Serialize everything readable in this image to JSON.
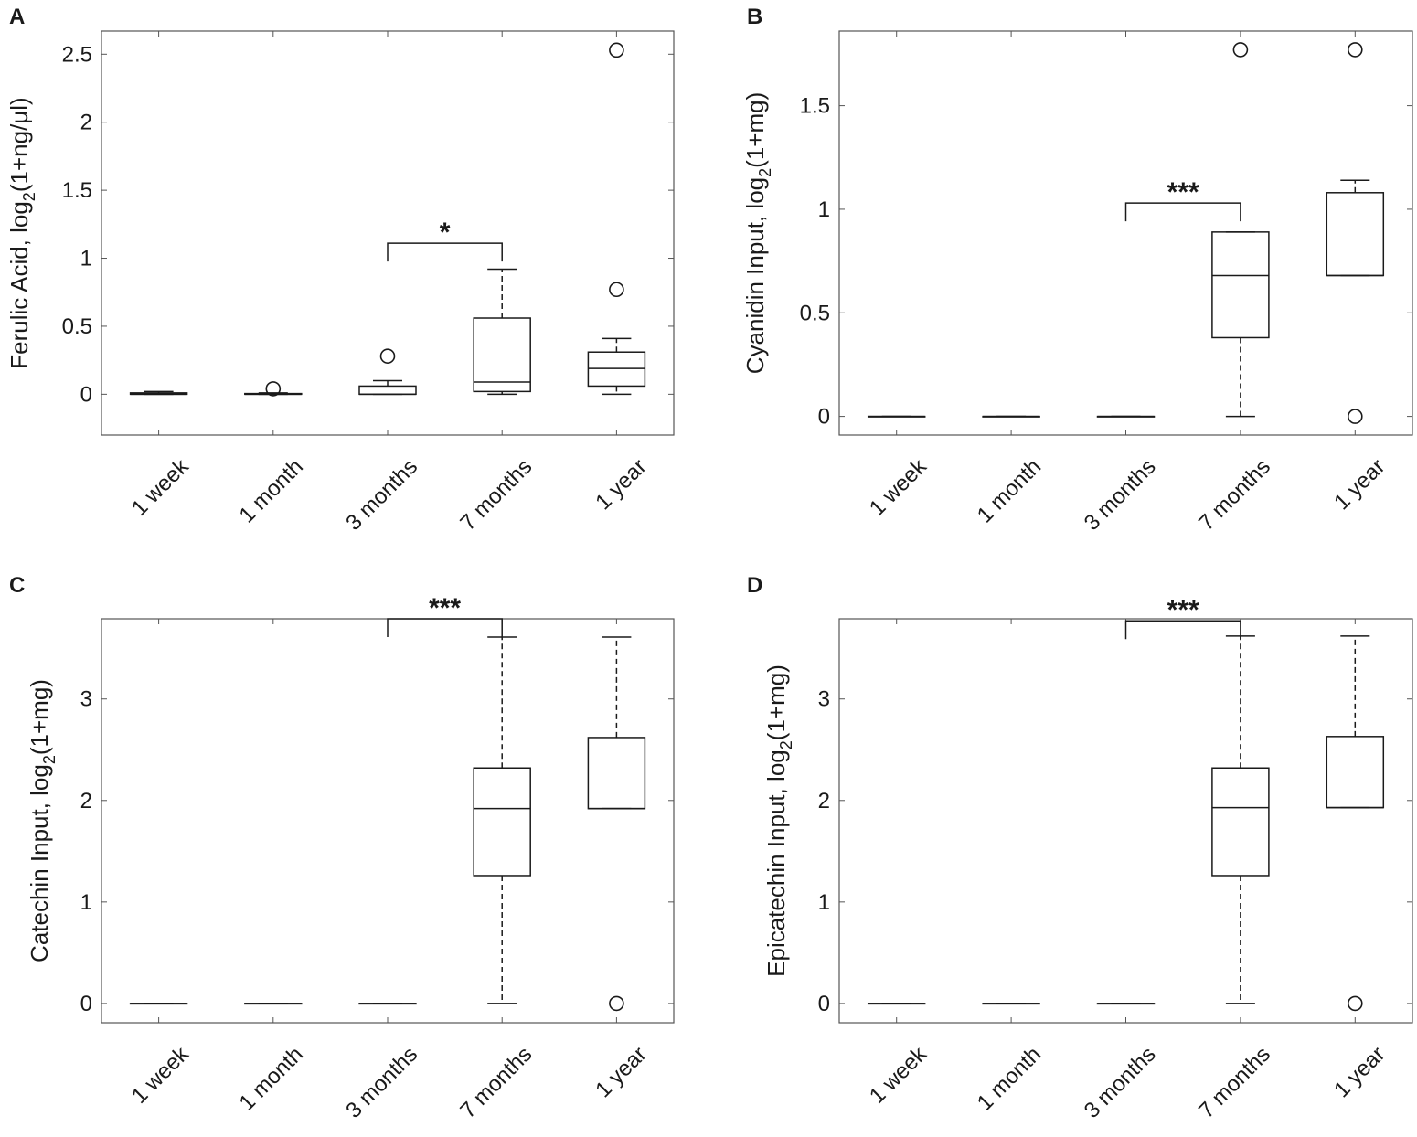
{
  "chart_data": [
    {
      "type": "box",
      "panel": "A",
      "ylabel": "Ferulic Acid, log2(1+ng/μl)",
      "ylabel_parts": {
        "pre": "Ferulic Acid, log",
        "sub": "2",
        "post": "(1+ng/μl)"
      },
      "categories": [
        "1 week",
        "1 month",
        "3 months",
        "7 months",
        "1 year"
      ],
      "ylim": [
        -0.3,
        2.67
      ],
      "yticks": [
        0,
        0.5,
        1,
        1.5,
        2,
        2.5
      ],
      "ytick_labels": [
        "0",
        "0.5",
        "1",
        "1.5",
        "2",
        "2.5"
      ],
      "boxes": [
        {
          "min": 0,
          "q1": 0,
          "median": 0,
          "q3": 0.01,
          "max": 0.02,
          "outliers": []
        },
        {
          "min": 0,
          "q1": 0,
          "median": 0,
          "q3": 0.005,
          "max": 0.01,
          "outliers": [
            0.04
          ]
        },
        {
          "min": 0,
          "q1": 0,
          "median": 0,
          "q3": 0.06,
          "max": 0.1,
          "outliers": [
            0.28
          ]
        },
        {
          "min": 0,
          "q1": 0.02,
          "median": 0.09,
          "q3": 0.56,
          "max": 0.92,
          "outliers": []
        },
        {
          "min": 0,
          "q1": 0.06,
          "median": 0.19,
          "q3": 0.31,
          "max": 0.41,
          "outliers": [
            0.77,
            2.53
          ]
        }
      ],
      "significance": {
        "from": "3 months",
        "to": "7 months",
        "y": 1.11,
        "label": "*"
      }
    },
    {
      "type": "box",
      "panel": "B",
      "ylabel": "Cyanidin Input, log2(1+mg)",
      "ylabel_parts": {
        "pre": "Cyanidin Input, log",
        "sub": "2",
        "post": "(1+mg)"
      },
      "categories": [
        "1 week",
        "1 month",
        "3 months",
        "7 months",
        "1 year"
      ],
      "ylim": [
        -0.09,
        1.86
      ],
      "yticks": [
        0,
        0.5,
        1,
        1.5
      ],
      "ytick_labels": [
        "0",
        "0.5",
        "1",
        "1.5"
      ],
      "boxes": [
        {
          "min": 0,
          "q1": 0,
          "median": 0,
          "q3": 0,
          "max": 0,
          "outliers": []
        },
        {
          "min": 0,
          "q1": 0,
          "median": 0,
          "q3": 0,
          "max": 0,
          "outliers": []
        },
        {
          "min": 0,
          "q1": 0,
          "median": 0,
          "q3": 0,
          "max": 0,
          "outliers": []
        },
        {
          "min": 0,
          "q1": 0.38,
          "median": 0.68,
          "q3": 0.89,
          "max": 0.89,
          "outliers": [
            1.77
          ]
        },
        {
          "min": 0.68,
          "q1": 0.68,
          "median": 0.68,
          "q3": 1.08,
          "max": 1.14,
          "outliers": [
            0,
            1.77
          ]
        }
      ],
      "significance": {
        "from": "3 months",
        "to": "7 months",
        "y": 1.03,
        "label": "***"
      }
    },
    {
      "type": "box",
      "panel": "C",
      "ylabel": "Catechin Input, log2(1+mg)",
      "ylabel_parts": {
        "pre": "Catechin Input, log",
        "sub": "2",
        "post": "(1+mg)"
      },
      "categories": [
        "1 week",
        "1 month",
        "3 months",
        "7 months",
        "1 year"
      ],
      "ylim": [
        -0.19,
        3.79
      ],
      "yticks": [
        0,
        1,
        2,
        3
      ],
      "ytick_labels": [
        "0",
        "1",
        "2",
        "3"
      ],
      "boxes": [
        {
          "min": 0,
          "q1": 0,
          "median": 0,
          "q3": 0,
          "max": 0,
          "outliers": []
        },
        {
          "min": 0,
          "q1": 0,
          "median": 0,
          "q3": 0,
          "max": 0,
          "outliers": []
        },
        {
          "min": 0,
          "q1": 0,
          "median": 0,
          "q3": 0,
          "max": 0,
          "outliers": []
        },
        {
          "min": 0,
          "q1": 1.26,
          "median": 1.92,
          "q3": 2.32,
          "max": 3.61,
          "outliers": []
        },
        {
          "min": 1.92,
          "q1": 1.92,
          "median": 1.92,
          "q3": 2.62,
          "max": 3.61,
          "outliers": [
            0
          ]
        }
      ],
      "significance": {
        "from": "3 months",
        "to": "7 months",
        "y": 3.79,
        "label": "***"
      }
    },
    {
      "type": "box",
      "panel": "D",
      "ylabel": "Epicatechin Input, log2(1+mg)",
      "ylabel_parts": {
        "pre": "Epicatechin Input, log",
        "sub": "2",
        "post": "(1+mg)"
      },
      "categories": [
        "1 week",
        "1 month",
        "3 months",
        "7 months",
        "1 year"
      ],
      "ylim": [
        -0.19,
        3.79
      ],
      "yticks": [
        0,
        1,
        2,
        3
      ],
      "ytick_labels": [
        "0",
        "1",
        "2",
        "3"
      ],
      "boxes": [
        {
          "min": 0,
          "q1": 0,
          "median": 0,
          "q3": 0,
          "max": 0,
          "outliers": []
        },
        {
          "min": 0,
          "q1": 0,
          "median": 0,
          "q3": 0,
          "max": 0,
          "outliers": []
        },
        {
          "min": 0,
          "q1": 0,
          "median": 0,
          "q3": 0,
          "max": 0,
          "outliers": []
        },
        {
          "min": 0,
          "q1": 1.26,
          "median": 1.93,
          "q3": 2.32,
          "max": 3.62,
          "outliers": []
        },
        {
          "min": 1.93,
          "q1": 1.93,
          "median": 1.93,
          "q3": 2.63,
          "max": 3.62,
          "outliers": [
            0
          ]
        }
      ],
      "significance": {
        "from": "3 months",
        "to": "7 months",
        "y": 3.77,
        "label": "***"
      }
    }
  ]
}
